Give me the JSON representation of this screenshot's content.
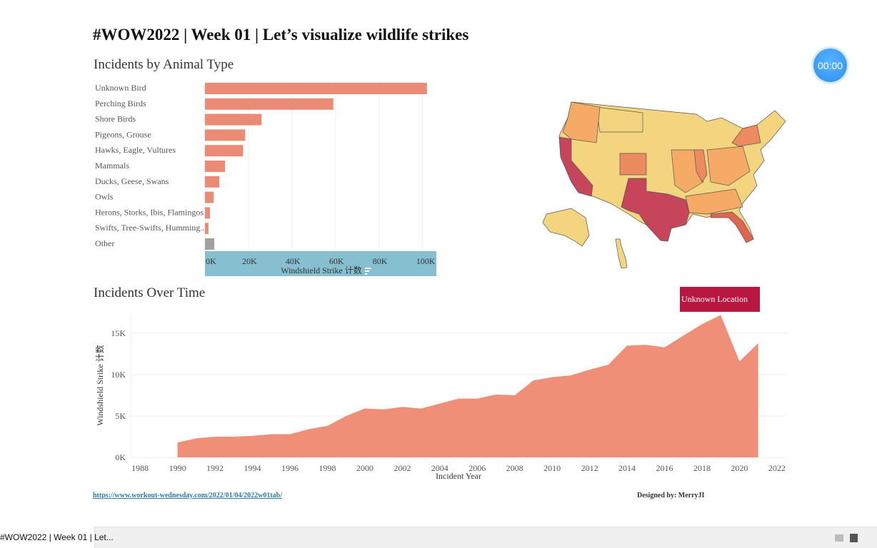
{
  "title": "#WOW2022 | Week 01 | Let’s visualize wildlife strikes",
  "timer": "00:00",
  "bar_section_title": "Incidents by Animal Type",
  "area_section_title": "Incidents Over Time",
  "unknown_location_label": "Unknown Location",
  "footer": {
    "link": "https://www.workout-wednesday.com/2022/01/04/2022w01tab/",
    "designed_by": "Designed by: MerryJI"
  },
  "sheet_tab": "#WOW2022 | Week 01 | Let...",
  "colors": {
    "bar": "#ec8b75",
    "other": "#a0a0a0",
    "axis_band": "#86bfcf",
    "area": "#ef8f78",
    "map_low": "#f3d57f",
    "map_mid": "#f5aa66",
    "map_high": "#c7455b",
    "unknown": "#b8173f"
  },
  "chart_data": [
    {
      "type": "bar",
      "orientation": "horizontal",
      "categories": [
        "Unknown Bird",
        "Perching Birds",
        "Shore Birds",
        "Pigeons, Grouse",
        "Hawks, Eagle, Vultures",
        "Mammals",
        "Ducks, Geese, Swans",
        "Owls",
        "Herons, Storks, Ibis, Flamingos",
        "Swifts, Tree-Swifts, Humming..",
        "Other"
      ],
      "values": [
        102000,
        59000,
        26000,
        18500,
        17500,
        9200,
        6600,
        4000,
        2300,
        1600,
        4300
      ],
      "xlabel": "Windshield Strike 计数",
      "xlim": [
        0,
        106000
      ],
      "ticks": [
        "0K",
        "20K",
        "40K",
        "60K",
        "80K",
        "100K"
      ],
      "grid": true
    },
    {
      "type": "area",
      "x": [
        1990,
        1991,
        1992,
        1993,
        1994,
        1995,
        1996,
        1997,
        1998,
        1999,
        2000,
        2001,
        2002,
        2003,
        2004,
        2005,
        2006,
        2007,
        2008,
        2009,
        2010,
        2011,
        2012,
        2013,
        2014,
        2015,
        2016,
        2017,
        2018,
        2019,
        2020,
        2021
      ],
      "y": [
        1800,
        2300,
        2500,
        2500,
        2600,
        2800,
        2800,
        3400,
        3800,
        5000,
        5900,
        5800,
        6100,
        5900,
        6500,
        7100,
        7100,
        7600,
        7500,
        9300,
        9700,
        9900,
        10600,
        11200,
        13500,
        13600,
        13300,
        14700,
        16100,
        17200,
        11600,
        13800
      ],
      "xlabel": "Incident Year",
      "ylabel": "Windshield Strike 计数",
      "xticks": [
        "1988",
        "1990",
        "1992",
        "1994",
        "1996",
        "1998",
        "2000",
        "2002",
        "2004",
        "2006",
        "2008",
        "2010",
        "2012",
        "2014",
        "2016",
        "2018",
        "2020",
        "2022"
      ],
      "yticks": [
        "0K",
        "5K",
        "10K",
        "15K"
      ],
      "xlim": [
        1987.5,
        2022.5
      ],
      "ylim": [
        0,
        17500
      ],
      "grid": true
    }
  ]
}
